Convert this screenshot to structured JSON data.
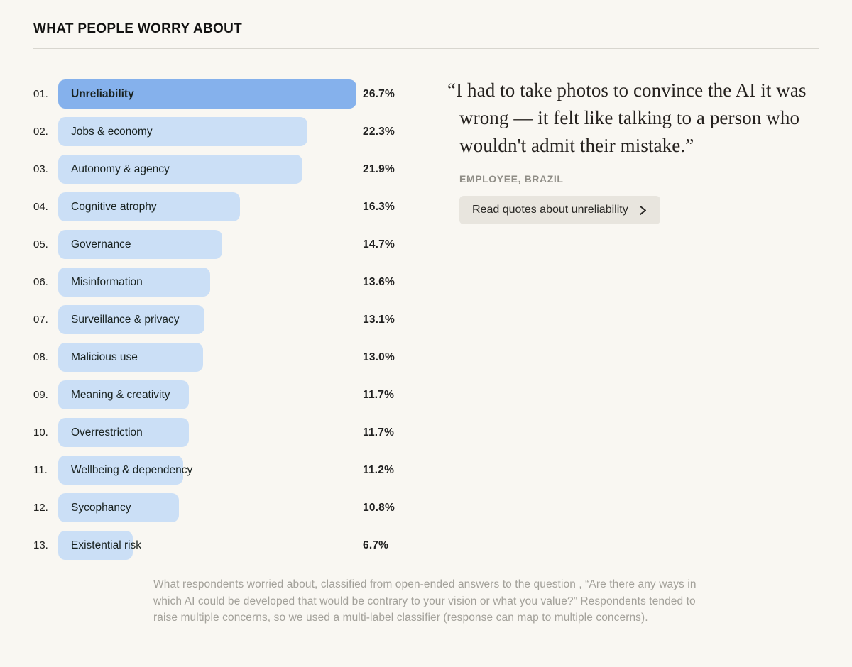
{
  "page": {
    "title": "WHAT PEOPLE WORRY ABOUT"
  },
  "chart_data": {
    "type": "bar",
    "orientation": "horizontal",
    "title": "WHAT PEOPLE WORRY ABOUT",
    "unit": "%",
    "selected_index": 0,
    "max_value": 26.7,
    "ranks": [
      "01.",
      "02.",
      "03.",
      "04.",
      "05.",
      "06.",
      "07.",
      "08.",
      "09.",
      "10.",
      "11.",
      "12.",
      "13."
    ],
    "categories": [
      "Unreliability",
      "Jobs & economy",
      "Autonomy & agency",
      "Cognitive atrophy",
      "Governance",
      "Misinformation",
      "Surveillance & privacy",
      "Malicious use",
      "Meaning & creativity",
      "Overrestriction",
      "Wellbeing & dependency",
      "Sycophancy",
      "Existential risk"
    ],
    "values": [
      26.7,
      22.3,
      21.9,
      16.3,
      14.7,
      13.6,
      13.1,
      13.0,
      11.7,
      11.7,
      11.2,
      10.8,
      6.7
    ],
    "value_labels": [
      "26.7%",
      "22.3%",
      "21.9%",
      "16.3%",
      "14.7%",
      "13.6%",
      "13.1%",
      "13.0%",
      "11.7%",
      "11.7%",
      "11.2%",
      "10.8%",
      "6.7%"
    ],
    "legend": "none",
    "grid": false
  },
  "quote": {
    "text": "“I had to take photos to convince the AI it was wrong — it felt like talking to a person who wouldn't admit their mistake.”",
    "attribution": "EMPLOYEE, BRAZIL",
    "button_label": "Read quotes about unreliability",
    "chevron_icon": "chevron-right"
  },
  "footnote": {
    "text": "What respondents worried about, classified from open-ended answers to the question , “Are there any ways in which AI could be developed that would be contrary to your vision or what you value?” Respondents tended to raise multiple concerns, so we used a multi-label classifier (response can map to multiple concerns)."
  },
  "colors": {
    "background": "#f9f7f2",
    "bar_selected": "#85b1ec",
    "bar_default": "#cbdff6",
    "text_primary": "#1e1e1c",
    "attribution_text": "#8f8d86",
    "footnote_text": "#a3a19a",
    "button_background": "#e8e5de",
    "divider": "#d8d6cf"
  }
}
